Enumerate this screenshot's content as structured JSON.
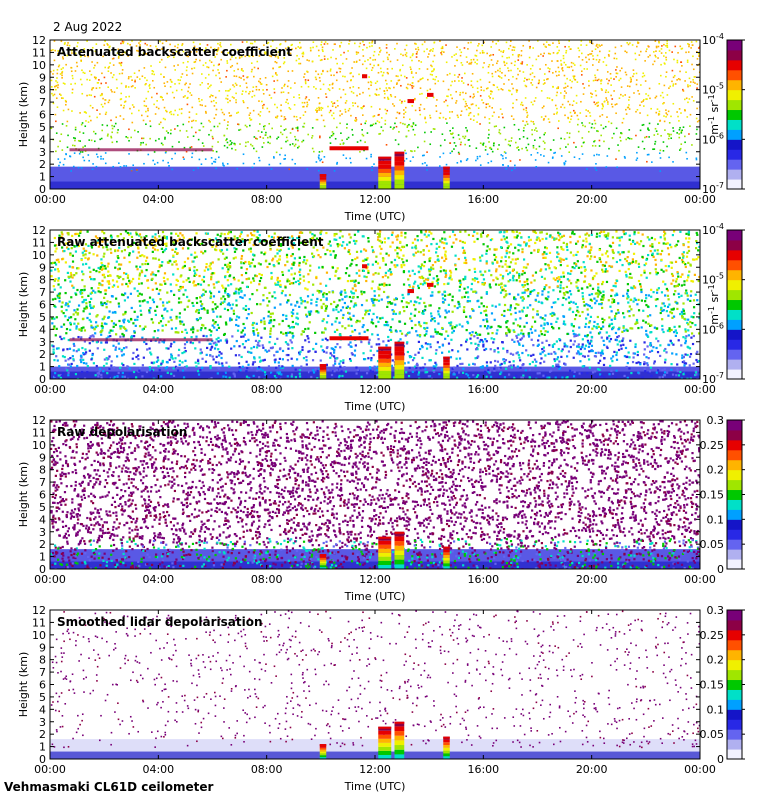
{
  "header": {
    "date": "2 Aug 2022"
  },
  "footer": {
    "site": "Vehmasmaki CL61D ceilometer"
  },
  "colors": {
    "scale": [
      "#f2f2ff",
      "#b0b0f0",
      "#6464f0",
      "#2828e6",
      "#1414c8",
      "#00a0ff",
      "#00e0c8",
      "#00c800",
      "#a0e600",
      "#f0f000",
      "#ffb400",
      "#ff5000",
      "#e60000",
      "#8c0046",
      "#780078"
    ]
  },
  "chart_data": [
    {
      "type": "heatmap",
      "title": "Attenuated backscatter coefficient",
      "xlabel": "Time (UTC)",
      "ylabel": "Height (km)",
      "x_ticks": [
        "00:00",
        "04:00",
        "08:00",
        "12:00",
        "16:00",
        "20:00",
        "00:00"
      ],
      "y_ticks": [
        "0",
        "1",
        "2",
        "3",
        "4",
        "5",
        "6",
        "7",
        "8",
        "9",
        "10",
        "11",
        "12"
      ],
      "ylim": [
        0,
        12
      ],
      "colorbar": {
        "scale": "log",
        "ticks": [
          "10^-7",
          "10^-6",
          "10^-5",
          "10^-4"
        ],
        "exponents": [
          "-7",
          "-6",
          "-5",
          "-4"
        ],
        "unit": "m^-1 sr^-1",
        "unit_base1": "m",
        "unit_exp1": "-1",
        "unit_base2": "sr",
        "unit_exp2": "-1"
      }
    },
    {
      "type": "heatmap",
      "title": "Raw attenuated backscatter coefficient",
      "xlabel": "Time (UTC)",
      "ylabel": "Height (km)",
      "x_ticks": [
        "00:00",
        "04:00",
        "08:00",
        "12:00",
        "16:00",
        "20:00",
        "00:00"
      ],
      "y_ticks": [
        "0",
        "1",
        "2",
        "3",
        "4",
        "5",
        "6",
        "7",
        "8",
        "9",
        "10",
        "11",
        "12"
      ],
      "ylim": [
        0,
        12
      ],
      "colorbar": {
        "scale": "log",
        "ticks": [
          "10^-7",
          "10^-6",
          "10^-5",
          "10^-4"
        ],
        "exponents": [
          "-7",
          "-6",
          "-5",
          "-4"
        ],
        "unit": "m^-1 sr^-1",
        "unit_base1": "m",
        "unit_exp1": "-1",
        "unit_base2": "sr",
        "unit_exp2": "-1"
      }
    },
    {
      "type": "heatmap",
      "title": "Raw depolarisation",
      "xlabel": "Time (UTC)",
      "ylabel": "Height (km)",
      "x_ticks": [
        "00:00",
        "04:00",
        "08:00",
        "12:00",
        "16:00",
        "20:00",
        "00:00"
      ],
      "y_ticks": [
        "0",
        "1",
        "2",
        "3",
        "4",
        "5",
        "6",
        "7",
        "8",
        "9",
        "10",
        "11",
        "12"
      ],
      "ylim": [
        0,
        12
      ],
      "colorbar": {
        "scale": "linear",
        "ticks": [
          "0",
          "0.05",
          "0.1",
          "0.15",
          "0.2",
          "0.25",
          "0.3"
        ],
        "range": [
          0,
          0.3
        ]
      }
    },
    {
      "type": "heatmap",
      "title": "Smoothed lidar depolarisation",
      "xlabel": "Time (UTC)",
      "ylabel": "Height (km)",
      "x_ticks": [
        "00:00",
        "04:00",
        "08:00",
        "12:00",
        "16:00",
        "20:00",
        "00:00"
      ],
      "y_ticks": [
        "0",
        "1",
        "2",
        "3",
        "4",
        "5",
        "6",
        "7",
        "8",
        "9",
        "10",
        "11",
        "12"
      ],
      "ylim": [
        0,
        12
      ],
      "colorbar": {
        "scale": "linear",
        "ticks": [
          "0",
          "0.05",
          "0.1",
          "0.15",
          "0.2",
          "0.25",
          "0.3"
        ],
        "range": [
          0,
          0.3
        ]
      }
    }
  ]
}
